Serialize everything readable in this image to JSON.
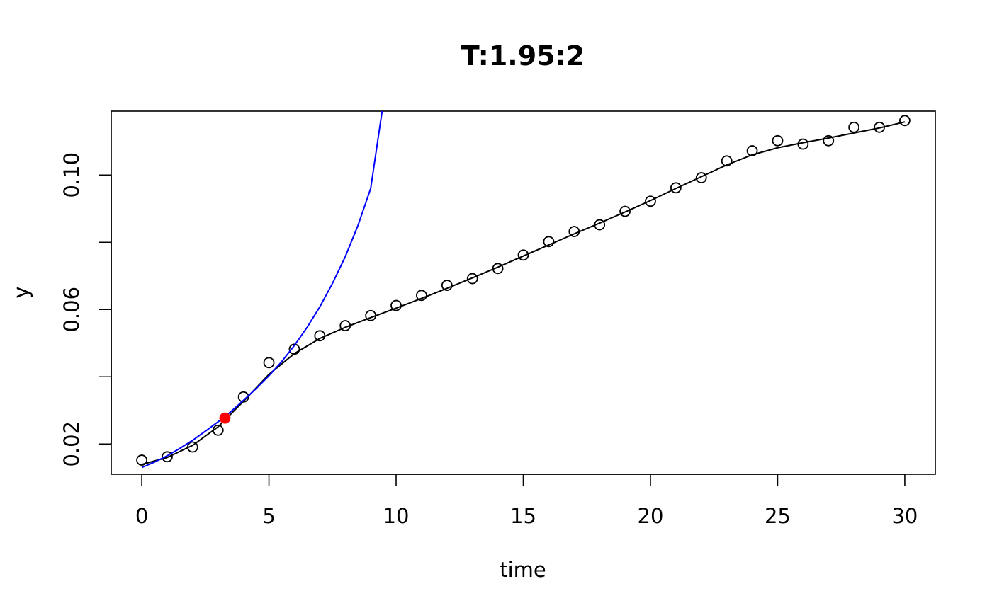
{
  "chart_data": {
    "type": "scatter",
    "title": "T:1.95:2",
    "xlabel": "time",
    "ylabel": "y",
    "xlim": [
      -1.2,
      31.2
    ],
    "ylim": [
      0.011,
      0.119
    ],
    "x_ticks": [
      0,
      5,
      10,
      15,
      20,
      25,
      30
    ],
    "x_tick_labels": [
      "0",
      "5",
      "10",
      "15",
      "20",
      "25",
      "30"
    ],
    "y_ticks": [
      0.02,
      0.04,
      0.06,
      0.08,
      0.1
    ],
    "y_tick_labels": [
      "0.02",
      "",
      "0.06",
      "",
      "0.10"
    ],
    "grid": false,
    "series": [
      {
        "kind": "points",
        "marker": "open-circle",
        "color": "#000000",
        "x": [
          0,
          1,
          2,
          3,
          4,
          5,
          6,
          7,
          8,
          9,
          10,
          11,
          12,
          13,
          14,
          15,
          16,
          17,
          18,
          19,
          20,
          21,
          22,
          23,
          24,
          25,
          26,
          27,
          28,
          29,
          30
        ],
        "y": [
          0.0152,
          0.0162,
          0.0191,
          0.0241,
          0.034,
          0.0442,
          0.0482,
          0.0522,
          0.0552,
          0.0582,
          0.0612,
          0.0642,
          0.0672,
          0.0692,
          0.0722,
          0.0762,
          0.0802,
          0.0832,
          0.0852,
          0.0892,
          0.0922,
          0.0962,
          0.0992,
          0.1042,
          0.1072,
          0.1102,
          0.1092,
          0.1102,
          0.1142,
          0.1142,
          0.1162
        ]
      },
      {
        "kind": "line",
        "color": "#000000",
        "x": [
          0,
          1,
          2,
          3,
          4,
          5,
          6,
          7,
          8,
          9,
          10,
          11,
          12,
          13,
          14,
          15,
          16,
          17,
          18,
          19,
          20,
          21,
          22,
          23,
          24,
          25,
          26,
          27,
          28,
          29,
          30
        ],
        "y": [
          0.0139,
          0.016,
          0.0196,
          0.0251,
          0.0327,
          0.0407,
          0.0469,
          0.0514,
          0.0547,
          0.0576,
          0.0604,
          0.0633,
          0.0663,
          0.0694,
          0.0726,
          0.0759,
          0.0792,
          0.0825,
          0.0857,
          0.089,
          0.0924,
          0.096,
          0.0995,
          0.103,
          0.106,
          0.1081,
          0.1096,
          0.111,
          0.1125,
          0.114,
          0.1158
        ]
      },
      {
        "kind": "line",
        "color": "#0000FF",
        "x": [
          0,
          0.5,
          1,
          1.5,
          2,
          2.5,
          3,
          3.5,
          4,
          4.5,
          5,
          5.5,
          6,
          6.5,
          7,
          7.5,
          8,
          8.5,
          9,
          9.45
        ],
        "y": [
          0.013,
          0.0146,
          0.0165,
          0.0187,
          0.0211,
          0.0238,
          0.0266,
          0.0296,
          0.033,
          0.0365,
          0.0403,
          0.0445,
          0.0493,
          0.0547,
          0.0608,
          0.0678,
          0.0757,
          0.085,
          0.096,
          0.119
        ]
      },
      {
        "kind": "points",
        "marker": "filled-circle",
        "color": "#FF0000",
        "x": [
          3.27
        ],
        "y": [
          0.0277
        ]
      }
    ]
  }
}
